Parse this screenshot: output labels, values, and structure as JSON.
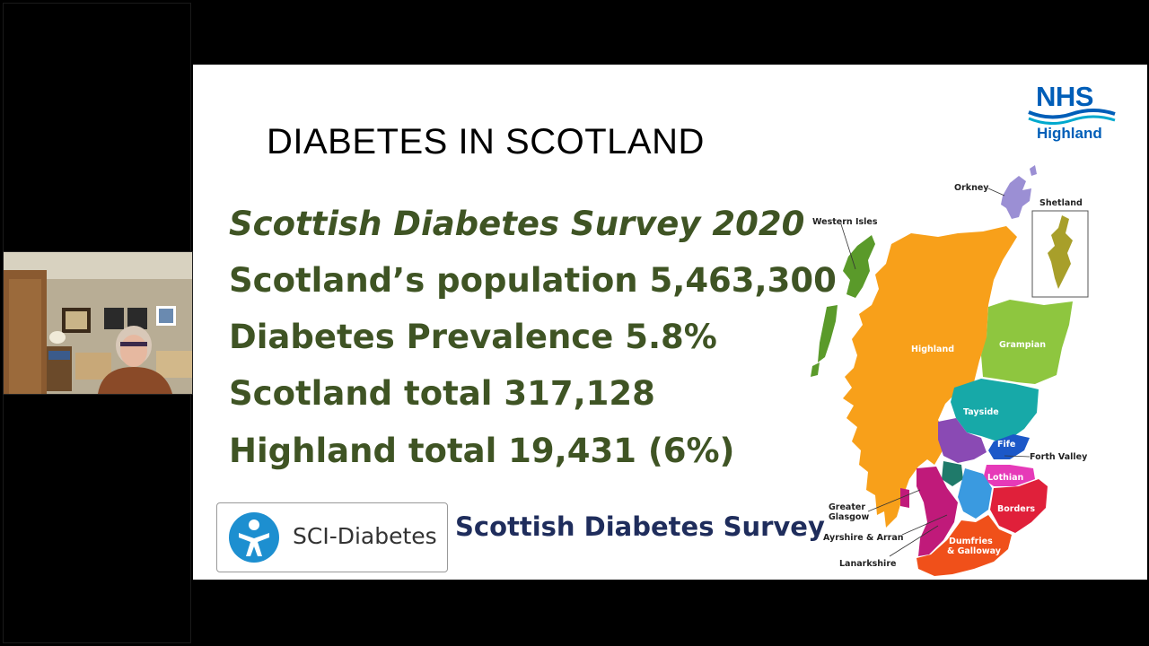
{
  "slide": {
    "title": "DIABETES IN SCOTLAND",
    "stats": [
      "Scottish Diabetes Survey 2020",
      "Scotland’s population 5,463,300",
      "Diabetes Prevalence 5.8%",
      "Scotland total  317,128",
      "Highland total 19,431 (6%)"
    ],
    "logo": {
      "org": "NHS",
      "region": "Highland",
      "brand_color": "#005eb8"
    },
    "sci_label": "SCI-Diabetes",
    "survey_label": "Scottish Diabetes Survey",
    "text_color": "#3f5424"
  },
  "map": {
    "regions": {
      "orkney": "Orkney",
      "shetland": "Shetland",
      "western_isles": "Western Isles",
      "highland": "Highland",
      "grampian": "Grampian",
      "tayside": "Tayside",
      "fife": "Fife",
      "forth_valley": "Forth Valley",
      "lothian": "Lothian",
      "greater_glasgow_1": "Greater",
      "greater_glasgow_2": "Glasgow",
      "borders": "Borders",
      "ayrshire": "Ayrshire & Arran",
      "dumfries_1": "Dumfries",
      "dumfries_2": "& Galloway",
      "lanarkshire": "Lanarkshire"
    }
  }
}
